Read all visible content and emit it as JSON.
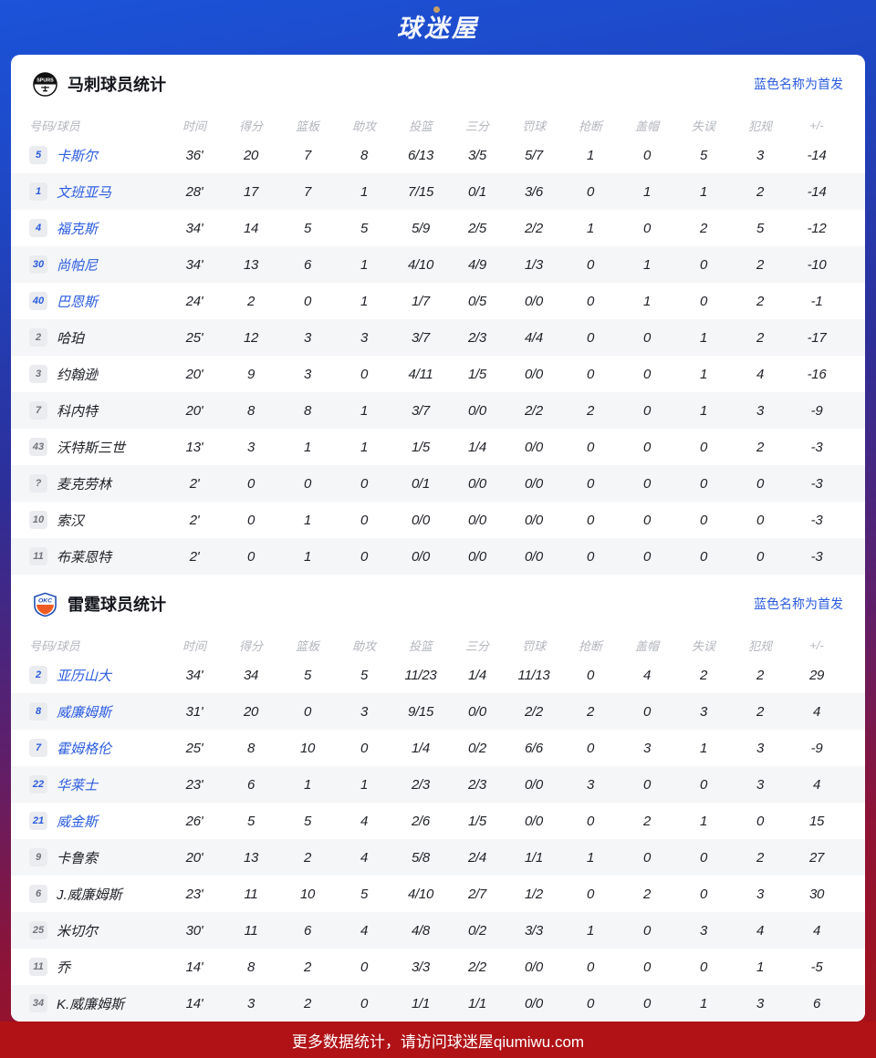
{
  "header": {
    "logo_text": "球迷屋"
  },
  "legend": "蓝色名称为首发",
  "columns": [
    "号码/球员",
    "时间",
    "得分",
    "篮板",
    "助攻",
    "投篮",
    "三分",
    "罚球",
    "抢断",
    "盖帽",
    "失误",
    "犯规",
    "+/-"
  ],
  "colors": {
    "starter_blue": "#2b5ce0",
    "footer_red": "#b01216",
    "gold_accent": "#c9a063",
    "header_blue": "#1c53d9"
  },
  "sections": [
    {
      "team": "spurs",
      "logo_label": "SPURS",
      "title": "马刺球员统计",
      "players": [
        {
          "num": "5",
          "name": "卡斯尔",
          "starter": true,
          "stats": [
            "36'",
            "20",
            "7",
            "8",
            "6/13",
            "3/5",
            "5/7",
            "1",
            "0",
            "5",
            "3",
            "-14"
          ]
        },
        {
          "num": "1",
          "name": "文班亚马",
          "starter": true,
          "stats": [
            "28'",
            "17",
            "7",
            "1",
            "7/15",
            "0/1",
            "3/6",
            "0",
            "1",
            "1",
            "2",
            "-14"
          ]
        },
        {
          "num": "4",
          "name": "福克斯",
          "starter": true,
          "stats": [
            "34'",
            "14",
            "5",
            "5",
            "5/9",
            "2/5",
            "2/2",
            "1",
            "0",
            "2",
            "5",
            "-12"
          ]
        },
        {
          "num": "30",
          "name": "尚帕尼",
          "starter": true,
          "stats": [
            "34'",
            "13",
            "6",
            "1",
            "4/10",
            "4/9",
            "1/3",
            "0",
            "1",
            "0",
            "2",
            "-10"
          ]
        },
        {
          "num": "40",
          "name": "巴恩斯",
          "starter": true,
          "stats": [
            "24'",
            "2",
            "0",
            "1",
            "1/7",
            "0/5",
            "0/0",
            "0",
            "1",
            "0",
            "2",
            "-1"
          ]
        },
        {
          "num": "2",
          "name": "哈珀",
          "starter": false,
          "stats": [
            "25'",
            "12",
            "3",
            "3",
            "3/7",
            "2/3",
            "4/4",
            "0",
            "0",
            "1",
            "2",
            "-17"
          ]
        },
        {
          "num": "3",
          "name": "约翰逊",
          "starter": false,
          "stats": [
            "20'",
            "9",
            "3",
            "0",
            "4/11",
            "1/5",
            "0/0",
            "0",
            "0",
            "1",
            "4",
            "-16"
          ]
        },
        {
          "num": "7",
          "name": "科内特",
          "starter": false,
          "stats": [
            "20'",
            "8",
            "8",
            "1",
            "3/7",
            "0/0",
            "2/2",
            "2",
            "0",
            "1",
            "3",
            "-9"
          ]
        },
        {
          "num": "43",
          "name": "沃特斯三世",
          "starter": false,
          "stats": [
            "13'",
            "3",
            "1",
            "1",
            "1/5",
            "1/4",
            "0/0",
            "0",
            "0",
            "0",
            "2",
            "-3"
          ]
        },
        {
          "num": "?",
          "name": "麦克劳林",
          "starter": false,
          "stats": [
            "2'",
            "0",
            "0",
            "0",
            "0/1",
            "0/0",
            "0/0",
            "0",
            "0",
            "0",
            "0",
            "-3"
          ]
        },
        {
          "num": "10",
          "name": "索汉",
          "starter": false,
          "stats": [
            "2'",
            "0",
            "1",
            "0",
            "0/0",
            "0/0",
            "0/0",
            "0",
            "0",
            "0",
            "0",
            "-3"
          ]
        },
        {
          "num": "11",
          "name": "布莱恩特",
          "starter": false,
          "stats": [
            "2'",
            "0",
            "1",
            "0",
            "0/0",
            "0/0",
            "0/0",
            "0",
            "0",
            "0",
            "0",
            "-3"
          ]
        }
      ]
    },
    {
      "team": "okc",
      "logo_label": "OKC",
      "title": "雷霆球员统计",
      "players": [
        {
          "num": "2",
          "name": "亚历山大",
          "starter": true,
          "stats": [
            "34'",
            "34",
            "5",
            "5",
            "11/23",
            "1/4",
            "11/13",
            "0",
            "4",
            "2",
            "2",
            "29"
          ]
        },
        {
          "num": "8",
          "name": "威廉姆斯",
          "starter": true,
          "stats": [
            "31'",
            "20",
            "0",
            "3",
            "9/15",
            "0/0",
            "2/2",
            "2",
            "0",
            "3",
            "2",
            "4"
          ]
        },
        {
          "num": "7",
          "name": "霍姆格伦",
          "starter": true,
          "stats": [
            "25'",
            "8",
            "10",
            "0",
            "1/4",
            "0/2",
            "6/6",
            "0",
            "3",
            "1",
            "3",
            "-9"
          ]
        },
        {
          "num": "22",
          "name": "华莱士",
          "starter": true,
          "stats": [
            "23'",
            "6",
            "1",
            "1",
            "2/3",
            "2/3",
            "0/0",
            "3",
            "0",
            "0",
            "3",
            "4"
          ]
        },
        {
          "num": "21",
          "name": "威金斯",
          "starter": true,
          "stats": [
            "26'",
            "5",
            "5",
            "4",
            "2/6",
            "1/5",
            "0/0",
            "0",
            "2",
            "1",
            "0",
            "15"
          ]
        },
        {
          "num": "9",
          "name": "卡鲁索",
          "starter": false,
          "stats": [
            "20'",
            "13",
            "2",
            "4",
            "5/8",
            "2/4",
            "1/1",
            "1",
            "0",
            "0",
            "2",
            "27"
          ]
        },
        {
          "num": "6",
          "name": "J.威廉姆斯",
          "starter": false,
          "stats": [
            "23'",
            "11",
            "10",
            "5",
            "4/10",
            "2/7",
            "1/2",
            "0",
            "2",
            "0",
            "3",
            "30"
          ]
        },
        {
          "num": "25",
          "name": "米切尔",
          "starter": false,
          "stats": [
            "30'",
            "11",
            "6",
            "4",
            "4/8",
            "0/2",
            "3/3",
            "1",
            "0",
            "3",
            "4",
            "4"
          ]
        },
        {
          "num": "11",
          "name": "乔",
          "starter": false,
          "stats": [
            "14'",
            "8",
            "2",
            "0",
            "3/3",
            "2/2",
            "0/0",
            "0",
            "0",
            "0",
            "1",
            "-5"
          ]
        },
        {
          "num": "34",
          "name": "K.威廉姆斯",
          "starter": false,
          "stats": [
            "14'",
            "3",
            "2",
            "0",
            "1/1",
            "1/1",
            "0/0",
            "0",
            "0",
            "1",
            "3",
            "6"
          ]
        }
      ]
    }
  ],
  "footer": {
    "text": "更多数据统计，请访问球迷屋qiumiwu.com"
  }
}
